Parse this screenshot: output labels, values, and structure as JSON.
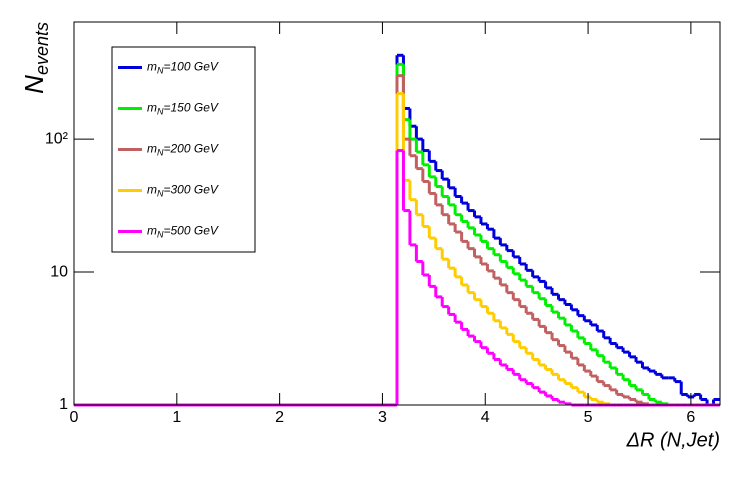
{
  "chart_data": {
    "type": "histogram",
    "xlabel": "ΔR (N,Jet)",
    "ylabel": "N",
    "ylabel_sub": "events",
    "xlim": [
      0,
      6.2832
    ],
    "ylim": [
      1,
      760
    ],
    "log_y": true,
    "xticks": [
      0,
      1,
      2,
      3,
      4,
      5,
      6
    ],
    "yticks": [
      1,
      10,
      {
        "value": 100,
        "label": "10²"
      }
    ],
    "legend": "upper left",
    "bins": [
      0,
      3.1416,
      3.2044,
      3.2673,
      3.3301,
      3.3929,
      3.4558,
      3.5186,
      3.5814,
      3.6442,
      3.7071,
      3.7699,
      3.8327,
      3.8956,
      3.9584,
      4.0212,
      4.0841,
      4.1469,
      4.2097,
      4.2726,
      4.3354,
      4.3982,
      4.4611,
      4.5239,
      4.5867,
      4.6496,
      4.7124,
      4.7752,
      4.8381,
      4.9009,
      4.9637,
      5.0265,
      5.0894,
      5.1522,
      5.215,
      5.2779,
      5.3407,
      5.4035,
      5.4664,
      5.5292,
      5.592,
      5.6549,
      5.7177,
      5.7805,
      5.8434,
      5.9062,
      5.969,
      6.0319,
      6.0947,
      6.1575,
      6.2204,
      6.2832
    ],
    "series": [
      {
        "name": "m",
        "name_sub": "N",
        "name_rest": "=100 GeV",
        "color": "#0000dd",
        "values": [
          0,
          427,
          170,
          125,
          100,
          82,
          68,
          58,
          50,
          43,
          37,
          33,
          29,
          26,
          23,
          21,
          18,
          16,
          14.5,
          13,
          11.5,
          10.3,
          9.2,
          8.5,
          7.6,
          6.8,
          6.2,
          5.7,
          5.2,
          4.7,
          4.3,
          4.0,
          3.6,
          3.2,
          2.9,
          2.7,
          2.5,
          2.3,
          2.1,
          1.9,
          1.8,
          1.7,
          1.6,
          1.6,
          1.5,
          1.2,
          1.15,
          1.2,
          1.1,
          0,
          1.1
        ]
      },
      {
        "name": "m",
        "name_sub": "N",
        "name_rest": "=150 GeV",
        "color": "#00ee00",
        "values": [
          0,
          365,
          140,
          100,
          80,
          64,
          52,
          44,
          37,
          32,
          27,
          24,
          21.5,
          19,
          17,
          15,
          13.5,
          12,
          10.8,
          9.7,
          8.7,
          7.8,
          7.0,
          6.3,
          5.6,
          5.0,
          4.5,
          4.0,
          3.6,
          3.2,
          2.9,
          2.6,
          2.35,
          2.1,
          1.9,
          1.7,
          1.55,
          1.4,
          1.3,
          1.2,
          1.1,
          1.05,
          1.02,
          0,
          0,
          0,
          0,
          0,
          0,
          0,
          0
        ]
      },
      {
        "name": "m",
        "name_sub": "N",
        "name_rest": "=200 GeV",
        "color": "#c06060",
        "values": [
          0,
          300,
          100,
          75,
          60,
          48,
          39,
          32,
          27,
          23,
          20,
          17,
          15,
          13,
          11.5,
          10.2,
          9.0,
          8.0,
          7.0,
          6.2,
          5.5,
          4.9,
          4.4,
          3.9,
          3.5,
          3.1,
          2.8,
          2.5,
          2.25,
          2.0,
          1.8,
          1.65,
          1.5,
          1.4,
          1.3,
          1.2,
          1.15,
          1.1,
          1.05,
          1.02,
          0,
          0,
          0,
          0,
          0,
          0,
          0,
          0,
          0,
          0,
          0
        ]
      },
      {
        "name": "m",
        "name_sub": "N",
        "name_rest": "=300 GeV",
        "color": "#ffcc00",
        "values": [
          0,
          220,
          49,
          35,
          27,
          22,
          18,
          15,
          12.5,
          10.7,
          9.2,
          8.0,
          7.0,
          6.2,
          5.5,
          4.9,
          4.3,
          3.8,
          3.4,
          3.0,
          2.7,
          2.45,
          2.2,
          2.0,
          1.85,
          1.7,
          1.55,
          1.45,
          1.35,
          1.25,
          1.15,
          1.1,
          1.05,
          1.02,
          0,
          0,
          0,
          0,
          0,
          0,
          0,
          0,
          0,
          0,
          0,
          0,
          0,
          0,
          0,
          0,
          0
        ]
      },
      {
        "name": "m",
        "name_sub": "N",
        "name_rest": "=500 GeV",
        "color": "#ff00ff",
        "values": [
          0,
          82,
          29,
          16,
          12,
          9.5,
          7.8,
          6.5,
          5.5,
          4.8,
          4.2,
          3.7,
          3.3,
          3.0,
          2.7,
          2.45,
          2.2,
          2.0,
          1.85,
          1.7,
          1.55,
          1.45,
          1.35,
          1.25,
          1.17,
          1.1,
          1.05,
          1.02,
          0,
          0,
          0,
          0,
          0,
          0,
          0,
          0,
          0,
          0,
          0,
          0,
          0,
          0,
          0,
          0,
          0,
          0,
          0,
          0,
          0,
          0,
          0
        ]
      }
    ]
  }
}
